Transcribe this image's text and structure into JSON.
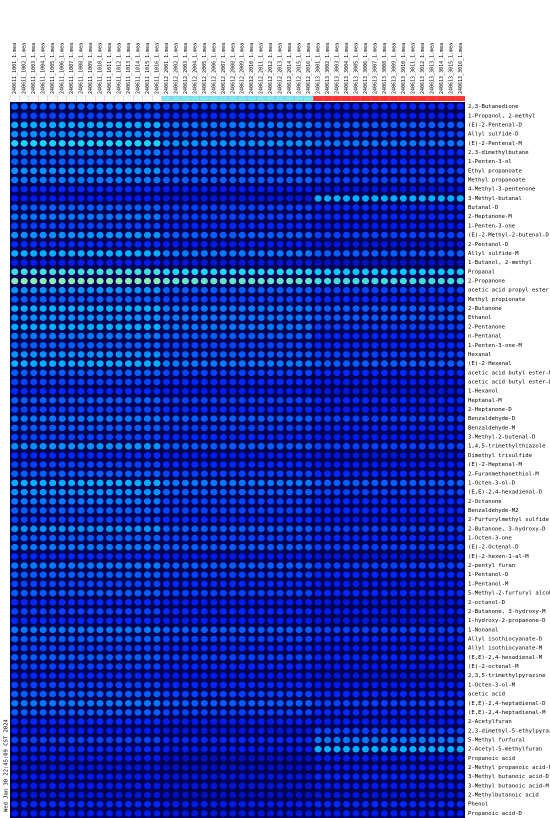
{
  "chart_data": {
    "type": "heatmap",
    "timestamp": "Wed Jan 30 22:45:09 CST 2024",
    "rows": [
      "2,3-Butanedione",
      "1-Propanol, 2-methyl",
      "(E)-2-Pentenal-D",
      "Allyl sulfide-D",
      "(E)-2-Pentenal-M",
      "2,3-dimethylbutane",
      "1-Penten-3-ol",
      "Ethyl propanoate",
      "Methyl propanoate",
      "4-Methyl-3-pentenone",
      "3-Methyl-butanal",
      "Butanal-D",
      "2-Heptanone-M",
      "1-Penten-3-one",
      "(E)-2-Methyl-2-butenal-D",
      "2-Pentanol-D",
      "Allyl sulfide-M",
      "1-Butanol, 2-methyl",
      "Propanal",
      "2-Propanone",
      "acetic acid propyl ester",
      "Methyl propionate",
      "2-Butanone",
      "Ethanol",
      "2-Pentanone",
      "n-Pentanal",
      "1-Penten-3-one-M",
      "Hexanal",
      "(E)-2-Hexenal",
      "acetic acid butyl ester-M",
      "acetic acid butyl ester-D",
      "1-Hexanol",
      "Heptanal-M",
      "2-Heptanone-D",
      "Benzaldehyde-D",
      "Benzaldehyde-M",
      "3-Methyl-2-butenal-D",
      "1,4,5-trimethylthiazole",
      "Dimethyl trisulfide",
      "(E)-2-Heptenal-M",
      "2-Furanmethanethiol-M",
      "1-Octen-3-ol-D",
      "(E,E)-2,4-hexadienal-D",
      "2-Octanone",
      "Benzaldehyde-M2",
      "2-Furfurylmethyl sulfide",
      "2-Butanone, 3-hydroxy-D",
      "1-Octen-3-one",
      "(E)-2-Octenal-D",
      "(E)-2-hexen-1-al-M",
      "2-pentyl furan",
      "1-Pentanol-D",
      "1-Pentanol-M",
      "5-Methyl-2-furfuryl alcohol",
      "2-octanol-D",
      "2-Butanone, 3-hydroxy-M",
      "1-hydroxy-2-propanone-D",
      "1-Nonanal",
      "Allyl isothiocyanate-D",
      "Allyl isothiocyanate-M",
      "(E,E)-2,4-hexadienal-M",
      "(E)-2-octenal-M",
      "2,3,5-trimethylpyrazine",
      "1-Octen-3-ol-M",
      "acetic acid",
      "(E,E)-2,4-heptadienal-D",
      "(E,E)-2,4-heptadienal-M",
      "2-Acetylfuran",
      "2,3-dimethyl-5-ethylpyrazine",
      "5-Methyl furfural",
      "2-Acetyl-5-methylfuran",
      "Propanoic acid",
      "2-Methyl propanoic acid-M",
      "3-Methyl butanoic acid-D",
      "3-Methyl butanoic acid-M",
      "2-Methylbutanoic acid",
      "Phenol",
      "Propanoic acid-D"
    ],
    "groups": [
      {
        "color": "#ffffff",
        "columns": [
          "240611_1001_1.mea",
          "240611_1002_1.mea",
          "240611_1003_1.mea",
          "240611_1004_1.mea",
          "240611_1005_1.mea",
          "240611_1006_1.mea",
          "240611_1007_1.mea",
          "240611_1008_1.mea",
          "240611_1009_1.mea",
          "240611_1010_1.mea",
          "240611_1011_1.mea",
          "240611_1012_1.mea",
          "240611_1013_1.mea",
          "240611_1014_1.mea",
          "240611_1015_1.mea",
          "240611_1016_1.mea"
        ],
        "values": [
          0.45,
          0.4,
          0.6,
          0.55,
          0.7,
          0.5,
          0.45,
          0.55,
          0.5,
          0.35,
          0.3,
          0.45,
          0.5,
          0.4,
          0.55,
          0.35,
          0.6,
          0.3,
          0.75,
          0.85,
          0.55,
          0.45,
          0.6,
          0.55,
          0.6,
          0.5,
          0.45,
          0.55,
          0.6,
          0.45,
          0.4,
          0.35,
          0.45,
          0.4,
          0.5,
          0.45,
          0.4,
          0.55,
          0.35,
          0.4,
          0.45,
          0.6,
          0.55,
          0.5,
          0.45,
          0.4,
          0.55,
          0.45,
          0.5,
          0.35,
          0.5,
          0.45,
          0.4,
          0.45,
          0.35,
          0.4,
          0.35,
          0.5,
          0.45,
          0.4,
          0.45,
          0.4,
          0.35,
          0.4,
          0.45,
          0.5,
          0.45,
          0.35,
          0.3,
          0.4,
          0.35,
          0.3,
          0.25,
          0.3,
          0.3,
          0.25,
          0.35,
          0.3
        ]
      },
      {
        "color": "#80e8f0",
        "columns": [
          "240612_2001_1.mea",
          "240612_2002_1.mea",
          "240612_2003_1.mea",
          "240612_2004_1.mea",
          "240612_2005_1.mea",
          "240612_2006_1.mea",
          "240612_2007_1.mea",
          "240612_2008_1.mea",
          "240612_2009_1.mea",
          "240612_2010_1.mea",
          "240612_2011_1.mea",
          "240612_2012_1.mea",
          "240612_2013_1.mea",
          "240612_2014_1.mea",
          "240612_2015_1.mea",
          "240612_2016_1.mea"
        ],
        "values": [
          0.4,
          0.35,
          0.5,
          0.45,
          0.55,
          0.4,
          0.4,
          0.45,
          0.45,
          0.3,
          0.25,
          0.4,
          0.4,
          0.35,
          0.45,
          0.3,
          0.5,
          0.25,
          0.7,
          0.8,
          0.45,
          0.4,
          0.5,
          0.5,
          0.5,
          0.45,
          0.4,
          0.45,
          0.5,
          0.4,
          0.35,
          0.3,
          0.4,
          0.35,
          0.45,
          0.4,
          0.35,
          0.45,
          0.3,
          0.35,
          0.4,
          0.5,
          0.45,
          0.4,
          0.4,
          0.35,
          0.45,
          0.4,
          0.45,
          0.3,
          0.45,
          0.4,
          0.35,
          0.4,
          0.3,
          0.35,
          0.3,
          0.45,
          0.4,
          0.35,
          0.4,
          0.35,
          0.3,
          0.35,
          0.4,
          0.45,
          0.4,
          0.3,
          0.25,
          0.35,
          0.3,
          0.2,
          0.2,
          0.25,
          0.25,
          0.2,
          0.3,
          0.25
        ]
      },
      {
        "color": "#ff3030",
        "columns": [
          "240613_3001_1.mea",
          "240613_3002_1.mea",
          "240613_3003_1.mea",
          "240613_3004_1.mea",
          "240613_3005_1.mea",
          "240613_3006_1.mea",
          "240613_3007_1.mea",
          "240613_3008_1.mea",
          "240613_3009_1.mea",
          "240613_3010_1.mea",
          "240613_3011_1.mea",
          "240613_3012_1.mea",
          "240613_3013_1.mea",
          "240613_3014_1.mea",
          "240613_3015_1.mea",
          "240613_3016_1.mea"
        ],
        "values": [
          0.35,
          0.3,
          0.45,
          0.4,
          0.5,
          0.35,
          0.35,
          0.4,
          0.4,
          0.25,
          0.6,
          0.35,
          0.35,
          0.3,
          0.4,
          0.25,
          0.45,
          0.2,
          0.65,
          0.75,
          0.4,
          0.35,
          0.45,
          0.45,
          0.4,
          0.35,
          0.35,
          0.4,
          0.45,
          0.35,
          0.3,
          0.25,
          0.35,
          0.3,
          0.4,
          0.35,
          0.3,
          0.4,
          0.25,
          0.3,
          0.35,
          0.45,
          0.4,
          0.35,
          0.35,
          0.3,
          0.4,
          0.35,
          0.4,
          0.25,
          0.4,
          0.35,
          0.3,
          0.35,
          0.25,
          0.3,
          0.25,
          0.4,
          0.35,
          0.3,
          0.35,
          0.3,
          0.25,
          0.3,
          0.35,
          0.4,
          0.35,
          0.3,
          0.4,
          0.5,
          0.6,
          0.3,
          0.3,
          0.35,
          0.3,
          0.25,
          0.35,
          0.3
        ]
      }
    ]
  }
}
